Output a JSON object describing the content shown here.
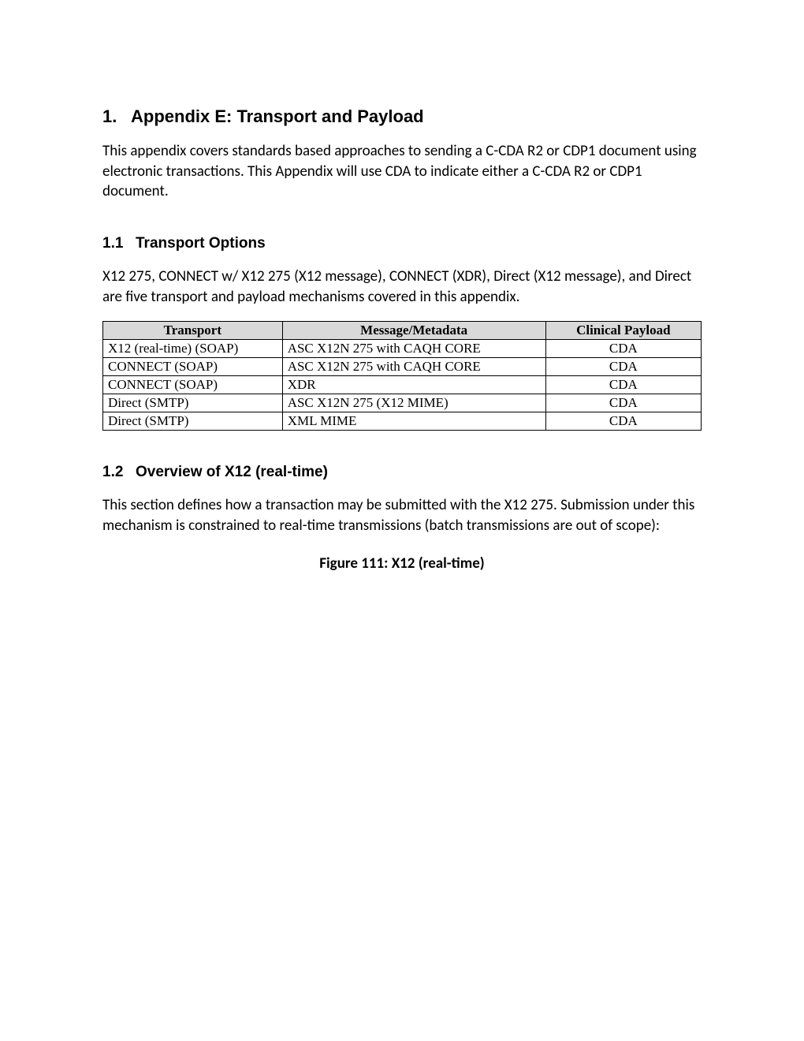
{
  "heading1": {
    "number": "1.",
    "title": "Appendix E: Transport and Payload"
  },
  "intro": "This appendix covers standards based approaches to sending a C-CDA R2 or CDP1 document using electronic transactions. This Appendix will use CDA to indicate either a C-CDA R2 or CDP1 document.",
  "section11": {
    "number": "1.1",
    "title": "Transport Options",
    "para": "X12 275, CONNECT w/ X12 275 (X12 message), CONNECT (XDR), Direct (X12 message), and Direct are five transport and payload mechanisms covered in this appendix."
  },
  "table": {
    "columns": [
      "Transport",
      "Message/Metadata",
      "Clinical Payload"
    ],
    "rows": [
      [
        "X12 (real-time) (SOAP)",
        "ASC X12N 275 with CAQH CORE",
        "CDA"
      ],
      [
        "CONNECT (SOAP)",
        "ASC X12N 275 with CAQH CORE",
        "CDA"
      ],
      [
        "CONNECT (SOAP)",
        "XDR",
        "CDA"
      ],
      [
        "Direct (SMTP)",
        "ASC X12N 275 (X12 MIME)",
        "CDA"
      ],
      [
        "Direct (SMTP)",
        "XML MIME",
        "CDA"
      ]
    ]
  },
  "section12": {
    "number": "1.2",
    "title": "Overview of X12 (real-time)",
    "para": "This section defines how a transaction may be submitted with the X12 275. Submission under this mechanism is constrained to real-time transmissions (batch transmissions are out of scope):"
  },
  "figure_caption": "Figure 111: X12 (real-time)"
}
